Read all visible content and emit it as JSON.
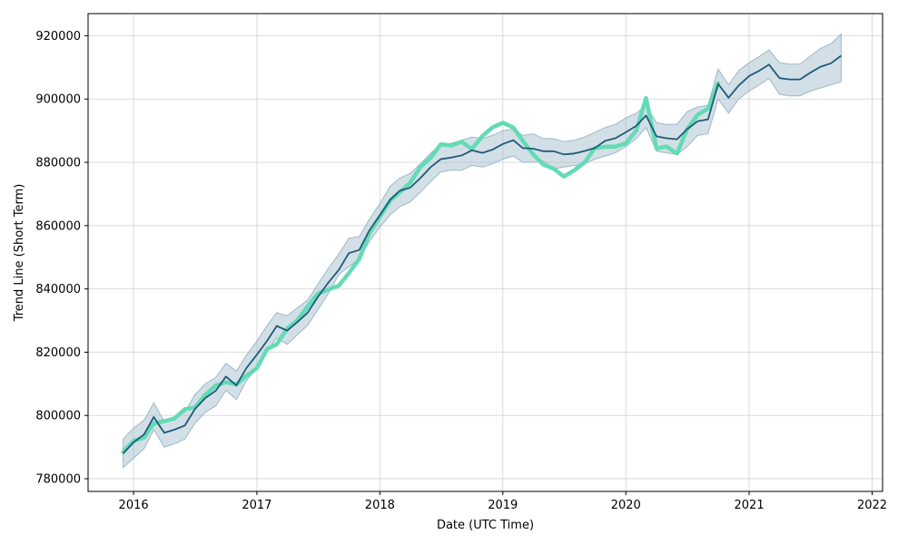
{
  "chart_data": {
    "type": "line",
    "title": "",
    "xlabel": "Date (UTC Time)",
    "ylabel": "Trend Line (Short Term)",
    "x_axis_type": "date",
    "xlim": [
      "2015-08-19",
      "2022-02-01"
    ],
    "ylim": [
      776000,
      927000
    ],
    "x_ticks": [
      {
        "date": "2016-01-01",
        "label": "2016"
      },
      {
        "date": "2017-01-01",
        "label": "2017"
      },
      {
        "date": "2018-01-01",
        "label": "2018"
      },
      {
        "date": "2019-01-01",
        "label": "2019"
      },
      {
        "date": "2020-01-01",
        "label": "2020"
      },
      {
        "date": "2021-01-01",
        "label": "2021"
      },
      {
        "date": "2022-01-01",
        "label": "2022"
      }
    ],
    "y_ticks": [
      780000,
      800000,
      820000,
      840000,
      860000,
      880000,
      900000,
      920000
    ],
    "grid": true,
    "legend": false,
    "colors": {
      "trend_line": "#1f5a7a",
      "confidence_band": "#9db8c8",
      "actual_line": "#63dbb4"
    },
    "series": [
      {
        "kind": "band",
        "x": [
          "2015-12-01",
          "2016-01-01",
          "2016-02-01",
          "2016-03-01",
          "2016-04-01",
          "2016-05-01",
          "2016-06-01",
          "2016-07-01",
          "2016-08-01",
          "2016-09-01",
          "2016-10-01",
          "2016-11-01",
          "2016-12-01",
          "2017-01-01",
          "2017-02-01",
          "2017-03-01",
          "2017-04-01",
          "2017-05-01",
          "2017-06-01",
          "2017-07-01",
          "2017-08-01",
          "2017-09-01",
          "2017-10-01",
          "2017-11-01",
          "2017-12-01",
          "2018-01-01",
          "2018-02-01",
          "2018-03-01",
          "2018-04-01",
          "2018-05-01",
          "2018-06-01",
          "2018-07-01",
          "2018-08-01",
          "2018-09-01",
          "2018-10-01",
          "2018-11-01",
          "2018-12-01",
          "2019-01-01",
          "2019-02-01",
          "2019-03-01",
          "2019-04-01",
          "2019-05-01",
          "2019-06-01",
          "2019-07-01",
          "2019-08-01",
          "2019-09-01",
          "2019-10-01",
          "2019-11-01",
          "2019-12-01",
          "2020-01-01",
          "2020-02-01",
          "2020-03-01",
          "2020-04-01",
          "2020-05-01",
          "2020-06-01",
          "2020-07-01",
          "2020-08-01",
          "2020-09-01",
          "2020-10-01",
          "2020-11-01",
          "2020-12-01",
          "2021-01-01",
          "2021-02-01",
          "2021-03-01",
          "2021-04-01",
          "2021-05-01",
          "2021-06-01",
          "2021-07-01",
          "2021-08-01",
          "2021-09-01",
          "2021-10-01"
        ],
        "lower": [
          783500,
          786500,
          789500,
          795500,
          790000,
          791000,
          792500,
          797500,
          801000,
          803000,
          808000,
          805000,
          811000,
          815000,
          820500,
          824500,
          822500,
          825500,
          828500,
          833500,
          838500,
          844500,
          847000,
          849500,
          855000,
          859500,
          863500,
          866000,
          867500,
          870500,
          874000,
          877000,
          877500,
          877500,
          879000,
          878500,
          879500,
          881000,
          882000,
          880000,
          880000,
          880500,
          878000,
          878500,
          879000,
          879500,
          881000,
          882000,
          883000,
          885000,
          887500,
          891000,
          883500,
          883000,
          882500,
          885000,
          888500,
          889000,
          900000,
          895500,
          900000,
          902500,
          904500,
          906500,
          901500,
          901000,
          901000,
          902500,
          903500,
          904500,
          905500
        ],
        "upper": [
          792500,
          796000,
          798500,
          804000,
          798000,
          799000,
          801000,
          806500,
          810000,
          812000,
          816500,
          814000,
          819000,
          823500,
          828500,
          832500,
          831500,
          834000,
          836500,
          841500,
          846500,
          851000,
          856000,
          856500,
          862000,
          867000,
          872500,
          875000,
          876500,
          879500,
          883000,
          885500,
          886000,
          887000,
          888000,
          887500,
          888500,
          890000,
          890500,
          888500,
          889000,
          887500,
          887500,
          886500,
          887000,
          888000,
          889500,
          891000,
          892000,
          894000,
          895500,
          898000,
          892500,
          892000,
          892000,
          896000,
          897500,
          898000,
          909500,
          904500,
          909000,
          911500,
          913500,
          915500,
          911500,
          911000,
          911000,
          913500,
          916000,
          917500,
          920500
        ]
      },
      {
        "kind": "line",
        "role": "trend",
        "x": [
          "2015-12-01",
          "2016-01-01",
          "2016-02-01",
          "2016-03-01",
          "2016-04-01",
          "2016-05-01",
          "2016-06-01",
          "2016-07-01",
          "2016-08-01",
          "2016-09-01",
          "2016-10-01",
          "2016-11-01",
          "2016-12-01",
          "2017-01-01",
          "2017-02-01",
          "2017-03-01",
          "2017-04-01",
          "2017-05-01",
          "2017-06-01",
          "2017-07-01",
          "2017-08-01",
          "2017-09-01",
          "2017-10-01",
          "2017-11-01",
          "2017-12-01",
          "2018-01-01",
          "2018-02-01",
          "2018-03-01",
          "2018-04-01",
          "2018-05-01",
          "2018-06-01",
          "2018-07-01",
          "2018-08-01",
          "2018-09-01",
          "2018-10-01",
          "2018-11-01",
          "2018-12-01",
          "2019-01-01",
          "2019-02-01",
          "2019-03-01",
          "2019-04-01",
          "2019-05-01",
          "2019-06-01",
          "2019-07-01",
          "2019-08-01",
          "2019-09-01",
          "2019-10-01",
          "2019-11-01",
          "2019-12-01",
          "2020-01-01",
          "2020-02-01",
          "2020-03-01",
          "2020-04-01",
          "2020-05-01",
          "2020-06-01",
          "2020-07-01",
          "2020-08-01",
          "2020-09-01",
          "2020-10-01",
          "2020-11-01",
          "2020-12-01",
          "2021-01-01",
          "2021-02-01",
          "2021-03-01",
          "2021-04-01",
          "2021-05-01",
          "2021-06-01",
          "2021-07-01",
          "2021-08-01",
          "2021-09-01",
          "2021-10-01"
        ],
        "values": [
          788000,
          791500,
          794000,
          799500,
          794500,
          795500,
          796800,
          802000,
          805500,
          807800,
          812300,
          809500,
          815000,
          819200,
          823700,
          828300,
          826800,
          829500,
          832500,
          837500,
          842000,
          846000,
          851300,
          852300,
          858500,
          863300,
          868200,
          871000,
          872000,
          875000,
          878500,
          881000,
          881500,
          882200,
          883800,
          883000,
          884000,
          885800,
          887000,
          884500,
          884300,
          883500,
          883500,
          882500,
          882800,
          883600,
          884500,
          886800,
          887600,
          889500,
          891500,
          894800,
          888200,
          887600,
          887300,
          890500,
          893000,
          893600,
          904800,
          900400,
          904300,
          907300,
          909000,
          910900,
          906600,
          906200,
          906200,
          908300,
          910200,
          911300,
          913700
        ]
      },
      {
        "kind": "line",
        "role": "actual",
        "x": [
          "2015-12-01",
          "2016-01-01",
          "2016-02-01",
          "2016-03-01",
          "2016-04-01",
          "2016-05-01",
          "2016-06-01",
          "2016-07-01",
          "2016-08-01",
          "2016-09-01",
          "2016-10-01",
          "2016-11-01",
          "2016-12-01",
          "2017-01-01",
          "2017-02-01",
          "2017-03-01",
          "2017-04-01",
          "2017-05-01",
          "2017-06-01",
          "2017-07-01",
          "2017-08-01",
          "2017-09-01",
          "2017-10-01",
          "2017-11-01",
          "2017-12-01",
          "2018-01-01",
          "2018-02-01",
          "2018-03-01",
          "2018-04-01",
          "2018-05-01",
          "2018-06-01",
          "2018-07-01",
          "2018-08-01",
          "2018-09-01",
          "2018-10-01",
          "2018-11-01",
          "2018-12-01",
          "2019-01-01",
          "2019-02-01",
          "2019-03-01",
          "2019-04-01",
          "2019-05-01",
          "2019-06-01",
          "2019-07-01",
          "2019-08-01",
          "2019-09-01",
          "2019-10-01",
          "2019-11-01",
          "2019-12-01",
          "2020-01-01",
          "2020-02-01",
          "2020-03-01",
          "2020-04-01",
          "2020-05-01",
          "2020-06-01",
          "2020-07-01",
          "2020-08-01",
          "2020-09-01",
          "2020-10-01"
        ],
        "values": [
          788500,
          792000,
          793000,
          797500,
          798200,
          799000,
          802000,
          802500,
          806500,
          809500,
          810500,
          809800,
          812500,
          815000,
          821000,
          822500,
          827500,
          830000,
          834500,
          838500,
          839800,
          841000,
          845000,
          849500,
          857500,
          862800,
          868000,
          870500,
          873500,
          878500,
          881500,
          885700,
          885300,
          886500,
          884200,
          888300,
          891000,
          892500,
          891000,
          886800,
          882500,
          879300,
          878000,
          875500,
          877500,
          880000,
          884500,
          884900,
          885000,
          886000,
          890000,
          900300,
          884400,
          885000,
          882800,
          890500,
          895000,
          897000,
          905000
        ]
      }
    ]
  }
}
